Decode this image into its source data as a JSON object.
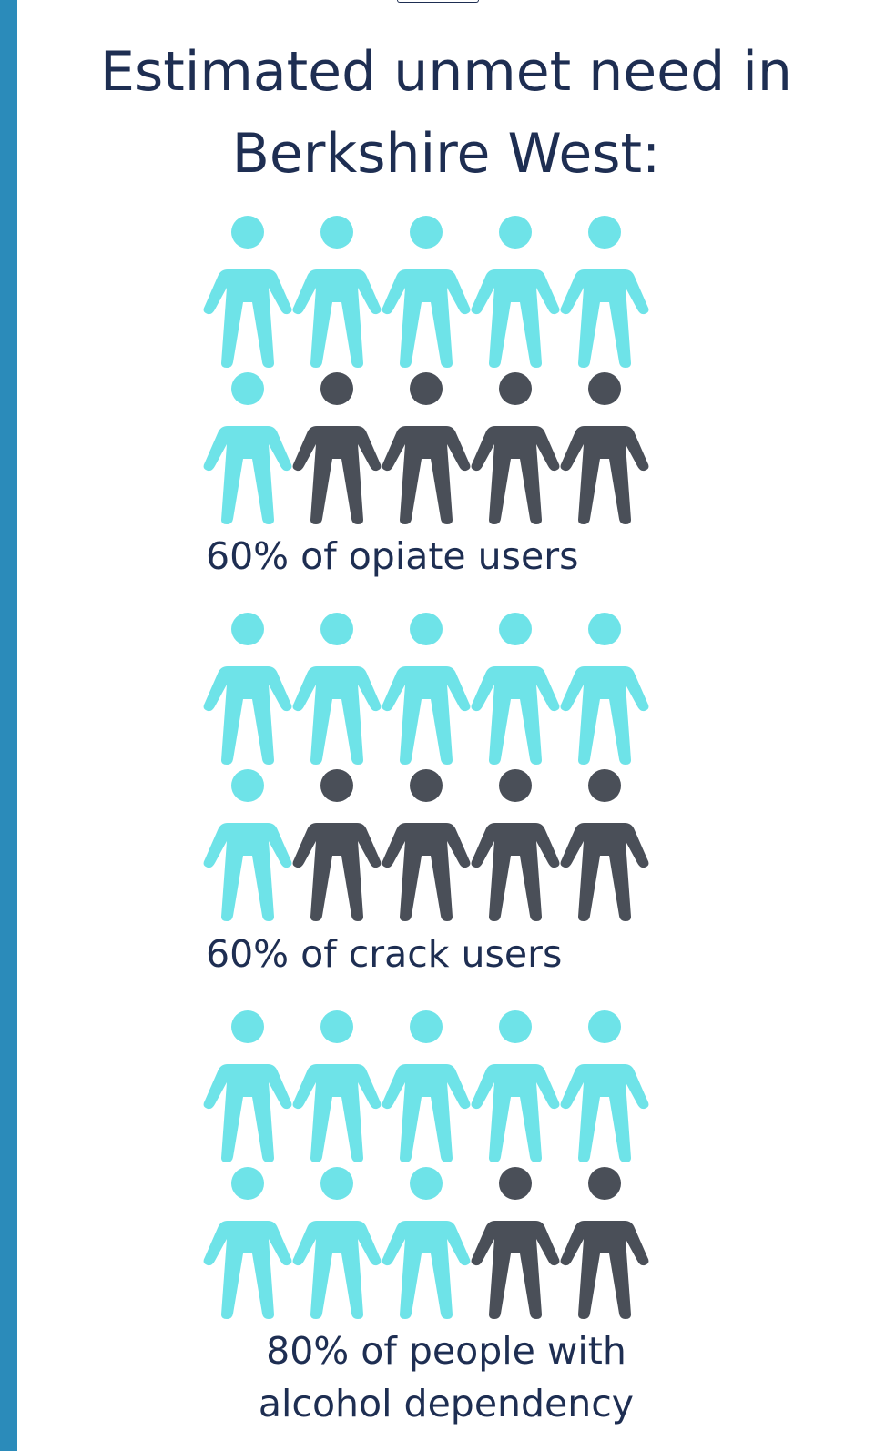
{
  "title": "Estimated unmet need in\nBerkshire West:",
  "colors": {
    "accent_bar": "#2b8bba",
    "filled": "#6ee3e8",
    "empty": "#4a4f58",
    "text": "#1e2e52"
  },
  "chart_data": [
    {
      "type": "pictogram",
      "total_icons": 10,
      "rows": 2,
      "columns": 5,
      "value": 60,
      "filled_icons": 6,
      "icon": "person-icon",
      "label": "60% of opiate users"
    },
    {
      "type": "pictogram",
      "total_icons": 10,
      "rows": 2,
      "columns": 5,
      "value": 60,
      "filled_icons": 6,
      "icon": "person-icon",
      "label": "60% of crack users"
    },
    {
      "type": "pictogram",
      "total_icons": 10,
      "rows": 2,
      "columns": 5,
      "value": 80,
      "filled_icons": 8,
      "icon": "person-icon",
      "label": "80% of people with\nalcohol dependency"
    }
  ]
}
